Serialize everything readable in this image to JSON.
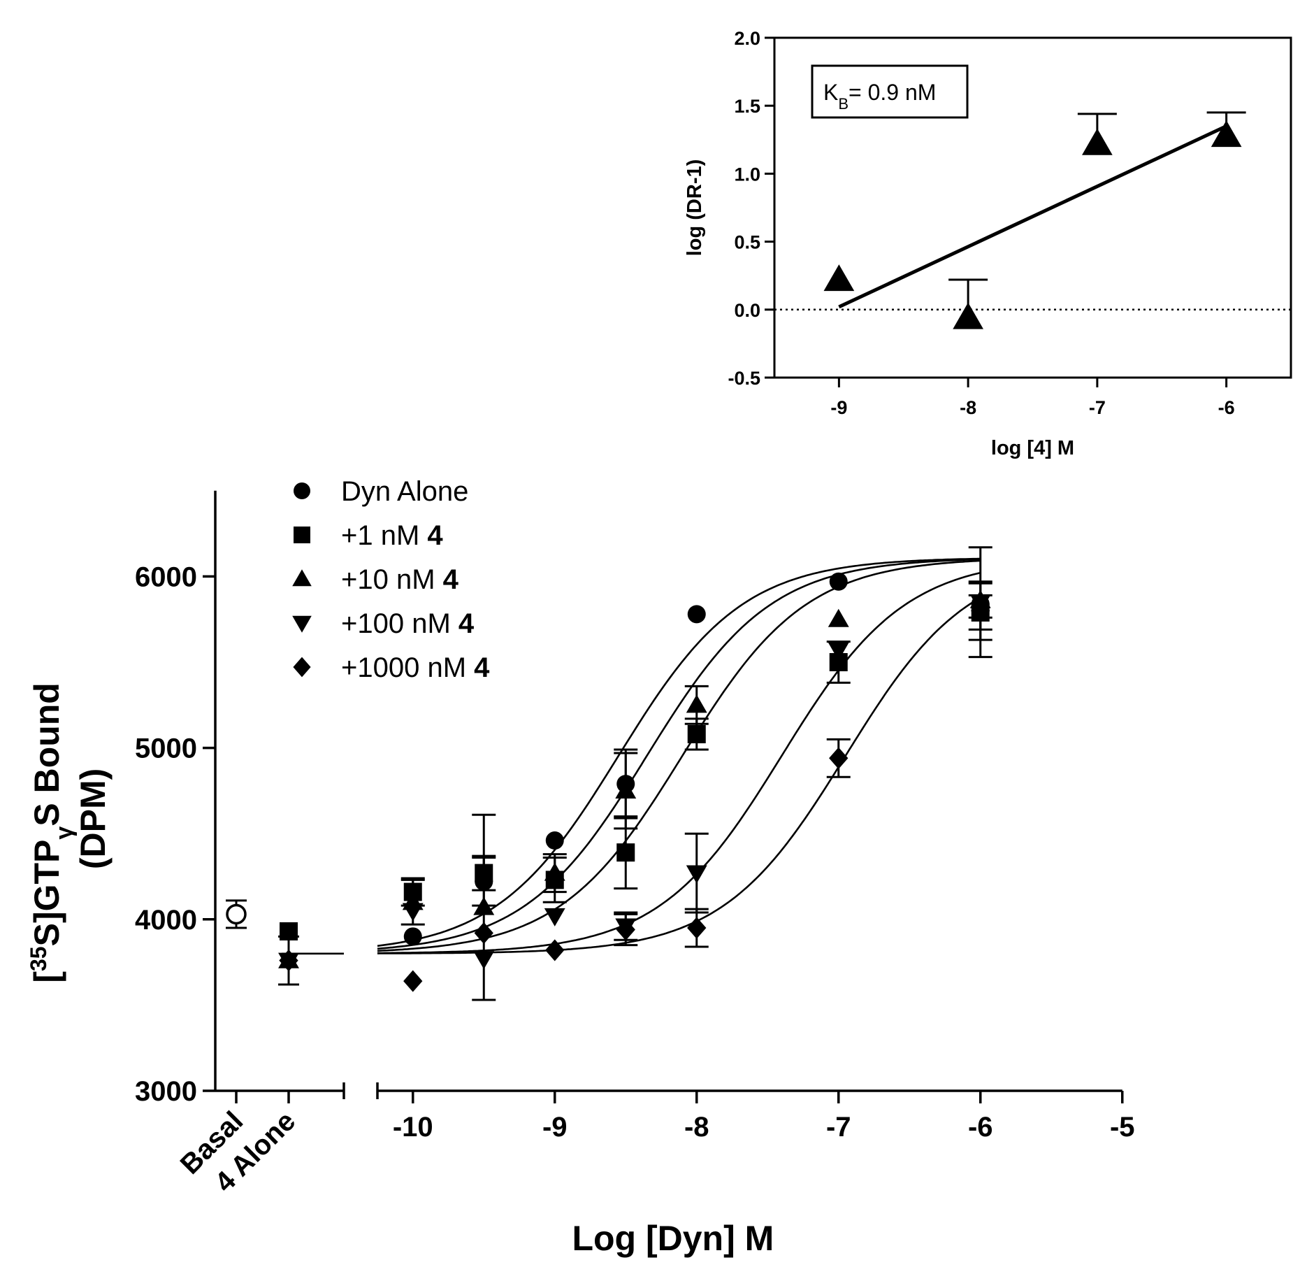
{
  "chart_data": [
    {
      "type": "scatter",
      "name": "main",
      "title": "",
      "xlabel": "Log [Dyn]  M",
      "ylabel_parts": [
        "[",
        "35",
        "S]GTP",
        "γ",
        "S Bound",
        "(DPM)"
      ],
      "xlim": [
        -10.25,
        -5
      ],
      "ylim": [
        3000,
        6500
      ],
      "xticks": [
        -10,
        -9,
        -8,
        -7,
        -6,
        -5
      ],
      "xtick_labels": [
        "-10",
        "-9",
        "-8",
        "-7",
        "-6",
        "-5"
      ],
      "yticks": [
        3000,
        4000,
        5000,
        6000
      ],
      "ytick_labels": [
        "3000",
        "4000",
        "5000",
        "6000"
      ],
      "category_labels": [
        "Basal",
        "4 Alone"
      ],
      "legend": [
        {
          "symbol": "circle",
          "label": "Dyn Alone",
          "bold_suffix": ""
        },
        {
          "symbol": "square",
          "label": "+1 nM ",
          "bold_suffix": "4"
        },
        {
          "symbol": "triangle-up",
          "label": "+10 nM ",
          "bold_suffix": "4"
        },
        {
          "symbol": "triangle-down",
          "label": "+100 nM ",
          "bold_suffix": "4"
        },
        {
          "symbol": "diamond",
          "label": "+1000 nM ",
          "bold_suffix": "4"
        }
      ],
      "basal": {
        "value": 4030,
        "err": 80,
        "symbol": "open-circle"
      },
      "alone": [
        {
          "symbol": "square",
          "value": 3930,
          "err": 0
        },
        {
          "symbol": "triangle-up",
          "value": 3760,
          "err": 140
        },
        {
          "symbol": "triangle-down",
          "value": 3760,
          "err": 0
        },
        {
          "symbol": "diamond",
          "value": 3760,
          "err": 0
        }
      ],
      "alone_baseline": 3800,
      "curve_bottom": 3800,
      "curve_top": 6110,
      "series": [
        {
          "name": "Dyn Alone",
          "symbol": "circle",
          "ec50_log": -8.55,
          "x": [
            -10,
            -9.5,
            -9,
            -8.5,
            -8,
            -7,
            -6
          ],
          "y": [
            3900,
            4220,
            4460,
            4790,
            5780,
            5970,
            5840
          ],
          "err": [
            0,
            140,
            0,
            200,
            0,
            0,
            0
          ]
        },
        {
          "name": "+1 nM 4",
          "symbol": "square",
          "ec50_log": -8.35,
          "x": [
            -10,
            -9.5,
            -9,
            -8.5,
            -8,
            -7,
            -6
          ],
          "y": [
            4160,
            4270,
            4230,
            4390,
            5080,
            5500,
            5790
          ],
          "err": [
            80,
            100,
            130,
            210,
            90,
            120,
            100
          ]
        },
        {
          "name": "+10 nM 4",
          "symbol": "triangle-up",
          "ec50_log": -8.1,
          "x": [
            -10,
            -9.5,
            -9,
            -8.5,
            -8,
            -7,
            -6
          ],
          "y": [
            4100,
            4070,
            4270,
            4750,
            5250,
            5750,
            5860
          ],
          "err": [
            130,
            540,
            110,
            220,
            110,
            0,
            100
          ]
        },
        {
          "name": "+100 nM 4",
          "symbol": "triangle-down",
          "ec50_log": -7.4,
          "x": [
            -10,
            -9.5,
            -9,
            -8.5,
            -8,
            -7,
            -6
          ],
          "y": [
            4050,
            3770,
            4020,
            3960,
            4270,
            5570,
            5850
          ],
          "err": [
            0,
            0,
            0,
            80,
            230,
            0,
            320
          ]
        },
        {
          "name": "+1000 nM 4",
          "symbol": "diamond",
          "ec50_log": -6.95,
          "x": [
            -10,
            -9.5,
            -9,
            -8.5,
            -8,
            -7,
            -6
          ],
          "y": [
            3640,
            3920,
            3820,
            3940,
            3950,
            4940,
            5800
          ],
          "err": [
            0,
            0,
            0,
            90,
            110,
            110,
            170
          ]
        }
      ]
    },
    {
      "type": "scatter",
      "name": "inset",
      "title": "",
      "xlabel": "log [4] M",
      "ylabel": "log (DR-1)",
      "xlim": [
        -9.5,
        -5.5
      ],
      "ylim": [
        -0.5,
        2.0
      ],
      "xticks": [
        -9,
        -8,
        -7,
        -6
      ],
      "xtick_labels": [
        "-9",
        "-8",
        "-7",
        "-6"
      ],
      "yticks": [
        -0.5,
        0.0,
        0.5,
        1.0,
        1.5,
        2.0
      ],
      "ytick_labels": [
        "-0.5",
        "0.0",
        "0.5",
        "1.0",
        "1.5",
        "2.0"
      ],
      "annotation": {
        "main": "K",
        "sub": "B",
        "rest": "= 0.9 nM"
      },
      "zero_line": 0.0,
      "fit_line": {
        "x": [
          -9,
          -6
        ],
        "y": [
          0.02,
          1.35
        ]
      },
      "series": [
        {
          "name": "log (DR-1)",
          "symbol": "triangle-up",
          "x": [
            -9,
            -8,
            -7,
            -6
          ],
          "y": [
            0.22,
            -0.06,
            1.22,
            1.28
          ],
          "err_up": [
            0,
            0.28,
            0.22,
            0.17
          ]
        }
      ]
    }
  ]
}
